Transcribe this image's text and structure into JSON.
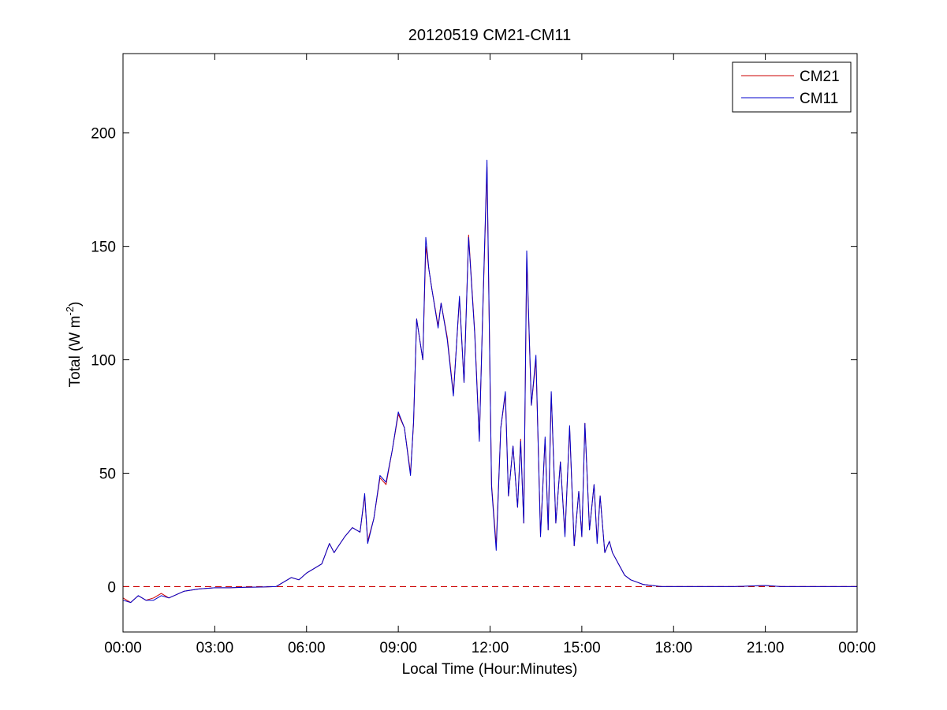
{
  "chart_data": {
    "type": "line",
    "title": "20120519 CM21-CM11",
    "xlabel": "Local Time (Hour:Minutes)",
    "ylabel": {
      "main": "Total (W m",
      "sup": "-2",
      "close": ")"
    },
    "xlim": [
      0,
      24
    ],
    "ylim": [
      -20,
      235
    ],
    "x_unit": "hours",
    "xticks": [
      {
        "value": 0,
        "label": "00:00"
      },
      {
        "value": 3,
        "label": "03:00"
      },
      {
        "value": 6,
        "label": "06:00"
      },
      {
        "value": 9,
        "label": "09:00"
      },
      {
        "value": 12,
        "label": "12:00"
      },
      {
        "value": 15,
        "label": "15:00"
      },
      {
        "value": 18,
        "label": "18:00"
      },
      {
        "value": 21,
        "label": "21:00"
      },
      {
        "value": 24,
        "label": "00:00"
      }
    ],
    "yticks": [
      {
        "value": 0,
        "label": "0"
      },
      {
        "value": 50,
        "label": "50"
      },
      {
        "value": 100,
        "label": "100"
      },
      {
        "value": 150,
        "label": "150"
      },
      {
        "value": 200,
        "label": "200"
      }
    ],
    "grid": false,
    "legend": "top-right",
    "reference_line": {
      "y": 0,
      "style": "dashed",
      "color": "#cc0000"
    },
    "x": [
      0,
      0.25,
      0.5,
      0.75,
      1.0,
      1.25,
      1.5,
      2.0,
      2.5,
      3.0,
      3.5,
      4.0,
      4.5,
      5.0,
      5.25,
      5.5,
      5.75,
      6.0,
      6.25,
      6.5,
      6.75,
      6.9,
      7.0,
      7.25,
      7.5,
      7.75,
      7.9,
      8.0,
      8.2,
      8.4,
      8.6,
      8.8,
      9.0,
      9.2,
      9.4,
      9.5,
      9.6,
      9.8,
      9.9,
      10.0,
      10.1,
      10.3,
      10.4,
      10.6,
      10.8,
      11.0,
      11.15,
      11.3,
      11.5,
      11.65,
      11.75,
      11.9,
      12.05,
      12.2,
      12.35,
      12.5,
      12.6,
      12.75,
      12.9,
      13.0,
      13.1,
      13.2,
      13.35,
      13.5,
      13.65,
      13.8,
      13.9,
      14.0,
      14.15,
      14.3,
      14.45,
      14.6,
      14.75,
      14.9,
      15.0,
      15.1,
      15.25,
      15.4,
      15.5,
      15.6,
      15.75,
      15.9,
      16.0,
      16.2,
      16.4,
      16.6,
      16.8,
      17.0,
      17.3,
      17.6,
      18.0,
      18.4,
      18.8,
      19.2,
      20.0,
      21.0,
      21.5,
      22.0,
      23.0,
      24.0
    ],
    "series": [
      {
        "name": "CM21",
        "color": "#cc0000",
        "values": [
          -5,
          -7,
          -4,
          -6,
          -5,
          -3,
          -5,
          -2,
          -1,
          -0.5,
          -0.5,
          -0.3,
          -0.2,
          0,
          2,
          4,
          3,
          6,
          8,
          10,
          19,
          15,
          17,
          22,
          26,
          24,
          40,
          20,
          30,
          48,
          45,
          60,
          76,
          70,
          50,
          72,
          118,
          100,
          150,
          140,
          131,
          115,
          125,
          110,
          85,
          127,
          90,
          155,
          112,
          65,
          115,
          185,
          45,
          18,
          70,
          85,
          40,
          62,
          35,
          65,
          28,
          145,
          80,
          100,
          23,
          65,
          25,
          85,
          28,
          55,
          23,
          70,
          18,
          42,
          22,
          72,
          25,
          45,
          20,
          40,
          15,
          20,
          15,
          10,
          5,
          3,
          2,
          1,
          0.5,
          0,
          0,
          0,
          0,
          0,
          0,
          0.5,
          0,
          0,
          0,
          0
        ]
      },
      {
        "name": "CM11",
        "color": "#0000cc",
        "values": [
          -6,
          -7,
          -4,
          -6,
          -6,
          -4,
          -5,
          -2,
          -1,
          -0.5,
          -0.5,
          -0.3,
          -0.2,
          0,
          2,
          4,
          3,
          6,
          8,
          10,
          19,
          15,
          17,
          22,
          26,
          24,
          41,
          19,
          30,
          49,
          46,
          60,
          77,
          70,
          49,
          73,
          118,
          100,
          154,
          140,
          131,
          114,
          125,
          109,
          84,
          128,
          90,
          154,
          111,
          64,
          116,
          188,
          44,
          16,
          70,
          86,
          40,
          62,
          35,
          64,
          28,
          148,
          80,
          102,
          22,
          66,
          25,
          86,
          28,
          55,
          22,
          71,
          18,
          42,
          22,
          72,
          25,
          45,
          19,
          40,
          15,
          20,
          15,
          10,
          5,
          3,
          2,
          1,
          0.5,
          0,
          0,
          0,
          0,
          0,
          0,
          0.5,
          0,
          0,
          0,
          0
        ]
      }
    ]
  }
}
